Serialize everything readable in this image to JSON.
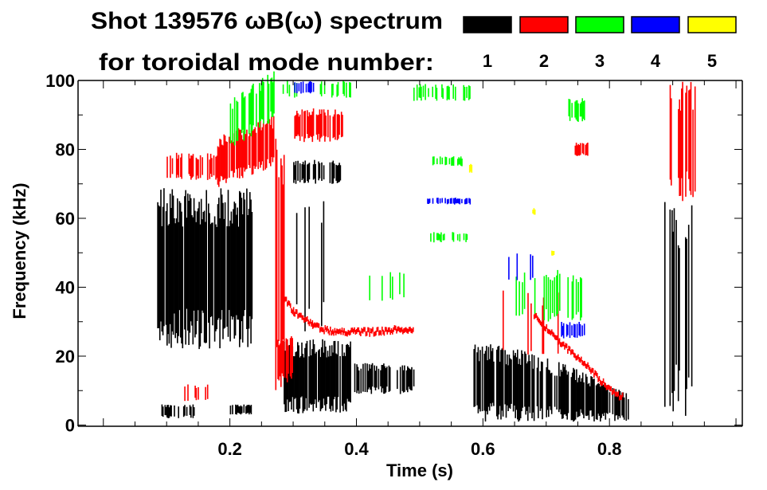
{
  "chart_data": {
    "type": "heatmap",
    "title": "Shot 139576 ωB(ω) spectrum",
    "subtitle": "for toroidal mode number:",
    "xlabel": "Time (s)",
    "ylabel": "Frequency (kHz)",
    "xlim": [
      -0.04,
      1.01
    ],
    "ylim": [
      0,
      100
    ],
    "xticks": [
      "0.2",
      "0.4",
      "0.6",
      "0.8"
    ],
    "xtick_values": [
      0.2,
      0.4,
      0.6,
      0.8
    ],
    "yticks": [
      "0",
      "20",
      "40",
      "60",
      "80",
      "100"
    ],
    "ytick_values": [
      0,
      20,
      40,
      60,
      80,
      100
    ],
    "legend": [
      {
        "mode": "1",
        "color": "#000000"
      },
      {
        "mode": "2",
        "color": "#ff0000"
      },
      {
        "mode": "3",
        "color": "#00ff00"
      },
      {
        "mode": "4",
        "color": "#0000ff"
      },
      {
        "mode": "5",
        "color": "#ffff00"
      }
    ],
    "regions": [
      {
        "mode": 1,
        "t": [
          0.085,
          0.235
        ],
        "f": [
          22,
          69
        ],
        "density": 0.9
      },
      {
        "mode": 1,
        "t": [
          0.09,
          0.15
        ],
        "f": [
          2,
          6
        ],
        "density": 0.5
      },
      {
        "mode": 1,
        "t": [
          0.2,
          0.235
        ],
        "f": [
          3,
          6
        ],
        "density": 0.8
      },
      {
        "mode": 1,
        "t": [
          0.285,
          0.39
        ],
        "f": [
          3,
          25
        ],
        "density": 0.95
      },
      {
        "mode": 1,
        "t": [
          0.39,
          0.49
        ],
        "f": [
          9,
          18
        ],
        "density": 0.6
      },
      {
        "mode": 1,
        "t": [
          0.3,
          0.38
        ],
        "f": [
          70,
          77
        ],
        "density": 0.7
      },
      {
        "mode": 1,
        "t": [
          0.585,
          0.83
        ],
        "f": [
          1,
          24
        ],
        "density": 0.85,
        "top_end": 3
      },
      {
        "mode": 1,
        "t": [
          0.885,
          0.935
        ],
        "f": [
          2,
          65
        ],
        "density": 0.35
      },
      {
        "mode": 1,
        "t": [
          0.29,
          0.38
        ],
        "f": [
          25,
          68
        ],
        "density": 0.08
      },
      {
        "mode": 2,
        "t": [
          0.1,
          0.18
        ],
        "f": [
          71,
          79
        ],
        "density": 0.5
      },
      {
        "mode": 2,
        "t": [
          0.18,
          0.27
        ],
        "f": [
          69,
          84
        ],
        "density": 0.8,
        "rise": 6
      },
      {
        "mode": 2,
        "t": [
          0.27,
          0.285
        ],
        "f": [
          10,
          88
        ],
        "density": 0.5
      },
      {
        "mode": 2,
        "t": [
          0.3,
          0.38
        ],
        "f": [
          82,
          92
        ],
        "density": 0.75
      },
      {
        "mode": 2,
        "t": [
          0.275,
          0.3
        ],
        "f": [
          12,
          26
        ],
        "density": 0.7
      },
      {
        "mode": 2,
        "t": [
          0.1,
          0.17
        ],
        "f": [
          7,
          12
        ],
        "density": 0.15
      },
      {
        "mode": 2,
        "t": [
          0.6,
          0.72
        ],
        "f": [
          18,
          40
        ],
        "density": 0.12
      },
      {
        "mode": 2,
        "t": [
          0.745,
          0.765
        ],
        "f": [
          78,
          82
        ],
        "density": 0.8
      },
      {
        "mode": 2,
        "t": [
          0.895,
          0.935
        ],
        "f": [
          65,
          100
        ],
        "density": 0.5
      },
      {
        "mode": 3,
        "t": [
          0.2,
          0.27
        ],
        "f": [
          80,
          95
        ],
        "density": 0.6,
        "rise": 8
      },
      {
        "mode": 3,
        "t": [
          0.28,
          0.4
        ],
        "f": [
          95,
          100
        ],
        "density": 0.25
      },
      {
        "mode": 3,
        "t": [
          0.49,
          0.58
        ],
        "f": [
          94,
          99
        ],
        "density": 0.5
      },
      {
        "mode": 3,
        "t": [
          0.52,
          0.57
        ],
        "f": [
          75,
          78
        ],
        "density": 0.6
      },
      {
        "mode": 3,
        "t": [
          0.51,
          0.58
        ],
        "f": [
          53,
          56
        ],
        "density": 0.6
      },
      {
        "mode": 3,
        "t": [
          0.65,
          0.76
        ],
        "f": [
          30,
          45
        ],
        "density": 0.3
      },
      {
        "mode": 3,
        "t": [
          0.42,
          0.48
        ],
        "f": [
          36,
          45
        ],
        "density": 0.15
      },
      {
        "mode": 3,
        "t": [
          0.73,
          0.76
        ],
        "f": [
          88,
          95
        ],
        "density": 0.5
      },
      {
        "mode": 4,
        "t": [
          0.51,
          0.58
        ],
        "f": [
          64,
          66
        ],
        "density": 0.6
      },
      {
        "mode": 4,
        "t": [
          0.72,
          0.76
        ],
        "f": [
          25,
          30
        ],
        "density": 0.5
      },
      {
        "mode": 4,
        "t": [
          0.3,
          0.345
        ],
        "f": [
          96,
          100
        ],
        "density": 0.5
      },
      {
        "mode": 4,
        "t": [
          0.64,
          0.7
        ],
        "f": [
          42,
          50
        ],
        "density": 0.1
      },
      {
        "mode": 5,
        "t": [
          0.578,
          0.582
        ],
        "f": [
          73,
          76
        ],
        "density": 1
      },
      {
        "mode": 5,
        "t": [
          0.678,
          0.682
        ],
        "f": [
          61,
          63
        ],
        "density": 1
      },
      {
        "mode": 5,
        "t": [
          0.708,
          0.712
        ],
        "f": [
          49,
          51
        ],
        "density": 1
      }
    ],
    "chirps": [
      {
        "mode": 2,
        "points": [
          [
            0.28,
            38
          ],
          [
            0.3,
            33
          ],
          [
            0.33,
            29
          ],
          [
            0.36,
            27
          ],
          [
            0.42,
            27
          ],
          [
            0.49,
            28
          ]
        ],
        "width": 3
      },
      {
        "mode": 2,
        "points": [
          [
            0.68,
            32
          ],
          [
            0.72,
            24
          ],
          [
            0.76,
            18
          ],
          [
            0.8,
            10
          ],
          [
            0.82,
            8
          ]
        ],
        "width": 3
      }
    ]
  }
}
